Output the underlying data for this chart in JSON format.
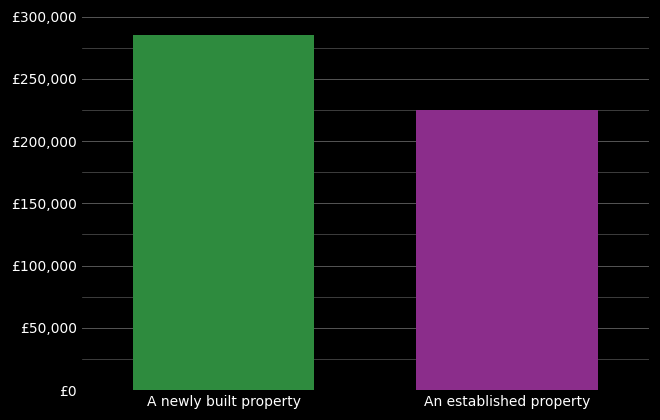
{
  "categories": [
    "A newly built property",
    "An established property"
  ],
  "values": [
    285000,
    225000
  ],
  "bar_colors": [
    "#2e8b3e",
    "#8b2d8b"
  ],
  "background_color": "#000000",
  "text_color": "#ffffff",
  "grid_color": "#555555",
  "ylim": [
    0,
    300000
  ],
  "yticks": [
    0,
    50000,
    100000,
    150000,
    200000,
    250000,
    300000
  ],
  "minor_ytick_interval": 25000,
  "bar_width": 0.32,
  "x_positions": [
    0.25,
    0.75
  ],
  "xlim": [
    0.0,
    1.0
  ],
  "xlabel": "",
  "ylabel": "",
  "tick_label_fontsize": 10,
  "x_tick_label_fontsize": 10
}
